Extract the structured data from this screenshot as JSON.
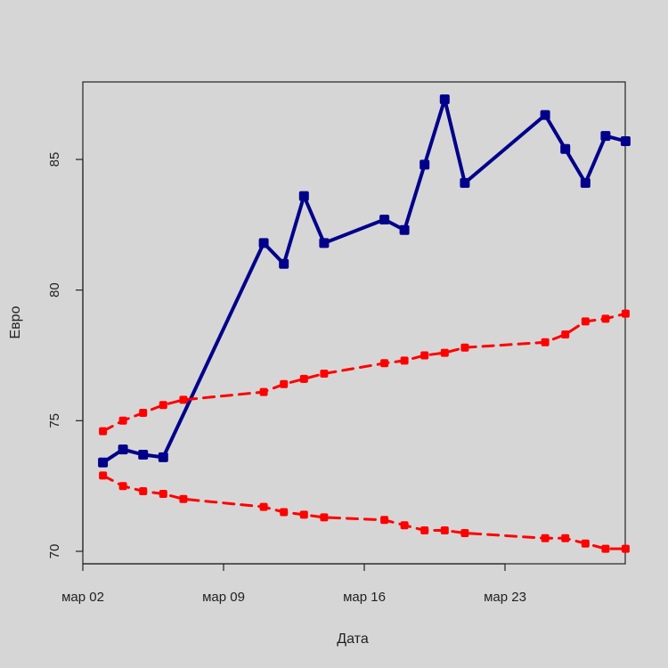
{
  "chart_data": {
    "type": "line",
    "title": "",
    "xlabel": "Дата",
    "ylabel": "Евро",
    "x_ticks": [
      {
        "date": "2020-03-02",
        "label": "мар 02"
      },
      {
        "date": "2020-03-09",
        "label": "мар 09"
      },
      {
        "date": "2020-03-16",
        "label": "мар 16"
      },
      {
        "date": "2020-03-23",
        "label": "мар 23"
      }
    ],
    "y_ticks": [
      70,
      75,
      80,
      85
    ],
    "xlim": [
      "2020-03-02",
      "2020-03-29"
    ],
    "ylim": [
      69.5,
      88.0
    ],
    "grid": false,
    "series": [
      {
        "color": "#00008b",
        "style": "solid",
        "points": [
          [
            "2020-03-03",
            73.4
          ],
          [
            "2020-03-04",
            73.9
          ],
          [
            "2020-03-05",
            73.7
          ],
          [
            "2020-03-06",
            73.6
          ],
          [
            "2020-03-11",
            81.8
          ],
          [
            "2020-03-12",
            81.0
          ],
          [
            "2020-03-13",
            83.6
          ],
          [
            "2020-03-14",
            81.8
          ],
          [
            "2020-03-17",
            82.7
          ],
          [
            "2020-03-18",
            82.3
          ],
          [
            "2020-03-19",
            84.8
          ],
          [
            "2020-03-20",
            87.3
          ],
          [
            "2020-03-21",
            84.1
          ],
          [
            "2020-03-25",
            86.7
          ],
          [
            "2020-03-26",
            85.4
          ],
          [
            "2020-03-27",
            84.1
          ],
          [
            "2020-03-28",
            85.9
          ],
          [
            "2020-03-29",
            85.7
          ]
        ]
      },
      {
        "color": "#ff0000",
        "style": "dashed",
        "points": [
          [
            "2020-03-03",
            74.6
          ],
          [
            "2020-03-04",
            75.0
          ],
          [
            "2020-03-05",
            75.3
          ],
          [
            "2020-03-06",
            75.6
          ],
          [
            "2020-03-07",
            75.8
          ],
          [
            "2020-03-11",
            76.1
          ],
          [
            "2020-03-12",
            76.4
          ],
          [
            "2020-03-13",
            76.6
          ],
          [
            "2020-03-14",
            76.8
          ],
          [
            "2020-03-17",
            77.2
          ],
          [
            "2020-03-18",
            77.3
          ],
          [
            "2020-03-19",
            77.5
          ],
          [
            "2020-03-20",
            77.6
          ],
          [
            "2020-03-21",
            77.8
          ],
          [
            "2020-03-25",
            78.0
          ],
          [
            "2020-03-26",
            78.3
          ],
          [
            "2020-03-27",
            78.8
          ],
          [
            "2020-03-28",
            78.9
          ],
          [
            "2020-03-29",
            79.1
          ]
        ]
      },
      {
        "color": "#ff0000",
        "style": "dashed",
        "points": [
          [
            "2020-03-03",
            72.9
          ],
          [
            "2020-03-04",
            72.5
          ],
          [
            "2020-03-05",
            72.3
          ],
          [
            "2020-03-06",
            72.2
          ],
          [
            "2020-03-07",
            72.0
          ],
          [
            "2020-03-11",
            71.7
          ],
          [
            "2020-03-12",
            71.5
          ],
          [
            "2020-03-13",
            71.4
          ],
          [
            "2020-03-14",
            71.3
          ],
          [
            "2020-03-17",
            71.2
          ],
          [
            "2020-03-18",
            71.0
          ],
          [
            "2020-03-19",
            70.8
          ],
          [
            "2020-03-20",
            70.8
          ],
          [
            "2020-03-21",
            70.7
          ],
          [
            "2020-03-25",
            70.5
          ],
          [
            "2020-03-26",
            70.5
          ],
          [
            "2020-03-27",
            70.3
          ],
          [
            "2020-03-28",
            70.1
          ],
          [
            "2020-03-29",
            70.1
          ]
        ]
      }
    ]
  }
}
